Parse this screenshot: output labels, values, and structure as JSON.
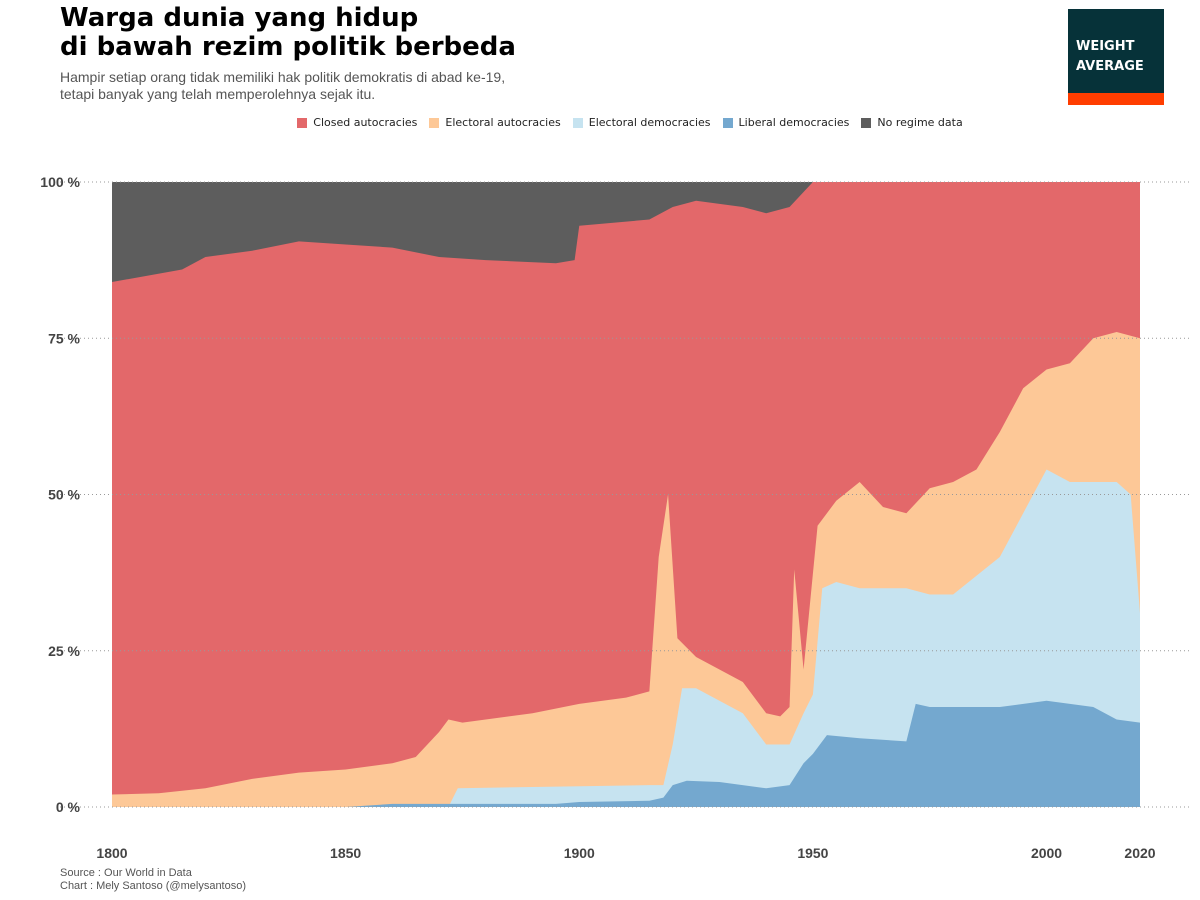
{
  "header": {
    "title_line1": "Warga dunia yang hidup",
    "title_line2": "di bawah rezim politik berbeda",
    "subtitle_line1": "Hampir setiap orang tidak memiliki hak politik demokratis di abad ke-19,",
    "subtitle_line2": "tetapi banyak yang telah memperolehnya sejak itu."
  },
  "logo": {
    "line1": "WEIGHT",
    "line2": "AVERAGE",
    "bg_color": "#063239",
    "accent_color": "#ff3d00"
  },
  "footer": {
    "source": "Source : Our World in Data",
    "credit": "Chart : Mely Santoso (@melysantoso)"
  },
  "chart_data": {
    "type": "area",
    "stacked": true,
    "stack_order_bottom_to_top": [
      "Liberal democracies",
      "Electoral democracies",
      "Electoral autocracies",
      "Closed autocracies",
      "No regime data"
    ],
    "xlim": [
      1800,
      2020
    ],
    "ylim": [
      0,
      100
    ],
    "grid": "horizontal dotted",
    "legend_position": "top",
    "x_ticks": [
      1800,
      1850,
      1900,
      1950,
      2000,
      2020
    ],
    "y_ticks": [
      0,
      25,
      50,
      75,
      100
    ],
    "y_tick_labels": [
      "0 %",
      "25 %",
      "50 %",
      "75 %",
      "100 %"
    ],
    "legend": [
      {
        "name": "Closed autocracies",
        "color": "#e3686a"
      },
      {
        "name": "Electoral autocracies",
        "color": "#fdc897"
      },
      {
        "name": "Electoral democracies",
        "color": "#c6e3f0"
      },
      {
        "name": "Liberal democracies",
        "color": "#74a8cf"
      },
      {
        "name": "No regime data",
        "color": "#5d5d5d"
      }
    ],
    "series": [
      {
        "name": "Liberal democracies",
        "color": "#74a8cf",
        "points": [
          [
            1800,
            0
          ],
          [
            1850,
            0
          ],
          [
            1860,
            0.5
          ],
          [
            1895,
            0.5
          ],
          [
            1900,
            0.8
          ],
          [
            1915,
            1
          ],
          [
            1918,
            1.5
          ],
          [
            1920,
            3.5
          ],
          [
            1923,
            4.2
          ],
          [
            1930,
            4
          ],
          [
            1940,
            3
          ],
          [
            1945,
            3.5
          ],
          [
            1948,
            7
          ],
          [
            1950,
            8.5
          ],
          [
            1953,
            11.5
          ],
          [
            1960,
            11
          ],
          [
            1970,
            10.5
          ],
          [
            1972,
            16.5
          ],
          [
            1975,
            16
          ],
          [
            1990,
            16
          ],
          [
            2000,
            17
          ],
          [
            2010,
            16
          ],
          [
            2015,
            14
          ],
          [
            2020,
            13.5
          ]
        ]
      },
      {
        "name": "Electoral democracies",
        "color": "#c6e3f0",
        "points": [
          [
            1800,
            0
          ],
          [
            1872,
            0
          ],
          [
            1874,
            3
          ],
          [
            1915,
            3.5
          ],
          [
            1918,
            3.5
          ],
          [
            1920,
            10
          ],
          [
            1922,
            19
          ],
          [
            1925,
            19
          ],
          [
            1930,
            17
          ],
          [
            1935,
            15
          ],
          [
            1940,
            10
          ],
          [
            1945,
            10
          ],
          [
            1948,
            15
          ],
          [
            1950,
            18
          ],
          [
            1952,
            35
          ],
          [
            1955,
            36
          ],
          [
            1960,
            35
          ],
          [
            1970,
            35
          ],
          [
            1975,
            34
          ],
          [
            1980,
            34
          ],
          [
            1990,
            40
          ],
          [
            2000,
            54
          ],
          [
            2005,
            52
          ],
          [
            2010,
            52
          ],
          [
            2015,
            52
          ],
          [
            2018,
            50
          ],
          [
            2020,
            31
          ]
        ]
      },
      {
        "name": "Electoral autocracies",
        "color": "#fdc897",
        "points": [
          [
            1800,
            2
          ],
          [
            1810,
            2.2
          ],
          [
            1820,
            3
          ],
          [
            1830,
            4.5
          ],
          [
            1840,
            5.5
          ],
          [
            1850,
            6
          ],
          [
            1860,
            7
          ],
          [
            1865,
            8
          ],
          [
            1870,
            12
          ],
          [
            1872,
            14
          ],
          [
            1875,
            13.5
          ],
          [
            1890,
            15
          ],
          [
            1900,
            16.5
          ],
          [
            1910,
            17.5
          ],
          [
            1915,
            18.5
          ],
          [
            1917,
            40
          ],
          [
            1919,
            50
          ],
          [
            1921,
            27
          ],
          [
            1925,
            24
          ],
          [
            1930,
            22
          ],
          [
            1935,
            20
          ],
          [
            1940,
            15
          ],
          [
            1943,
            14.5
          ],
          [
            1945,
            16
          ],
          [
            1946,
            38
          ],
          [
            1948,
            22
          ],
          [
            1951,
            45
          ],
          [
            1955,
            49
          ],
          [
            1960,
            52
          ],
          [
            1965,
            48
          ],
          [
            1970,
            47
          ],
          [
            1975,
            51
          ],
          [
            1980,
            52
          ],
          [
            1985,
            54
          ],
          [
            1990,
            60
          ],
          [
            1995,
            67
          ],
          [
            2000,
            70
          ],
          [
            2005,
            71
          ],
          [
            2010,
            75
          ],
          [
            2015,
            76
          ],
          [
            2020,
            75
          ]
        ]
      },
      {
        "name": "Closed autocracies",
        "color": "#e3686a",
        "points": [
          [
            1800,
            84
          ],
          [
            1815,
            86
          ],
          [
            1820,
            88
          ],
          [
            1830,
            89
          ],
          [
            1840,
            90.5
          ],
          [
            1850,
            90
          ],
          [
            1860,
            89.5
          ],
          [
            1870,
            88
          ],
          [
            1880,
            87.5
          ],
          [
            1895,
            87
          ],
          [
            1899,
            87.5
          ],
          [
            1900,
            93
          ],
          [
            1915,
            94
          ],
          [
            1920,
            96
          ],
          [
            1925,
            97
          ],
          [
            1935,
            96
          ],
          [
            1940,
            95
          ],
          [
            1945,
            96
          ],
          [
            1950,
            100
          ],
          [
            2020,
            100
          ]
        ]
      }
    ]
  }
}
